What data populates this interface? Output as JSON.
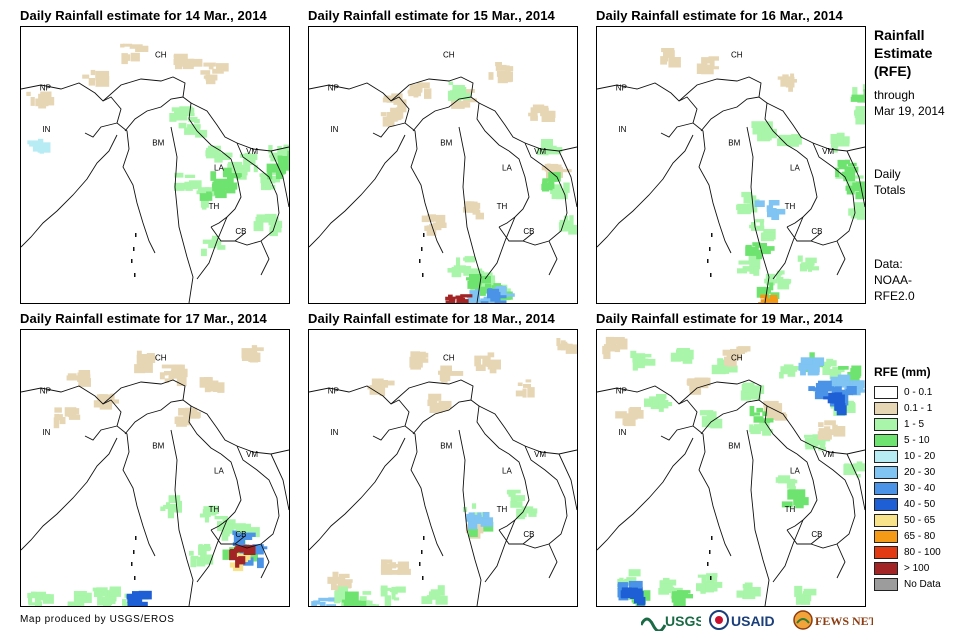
{
  "panels": [
    {
      "title": "Daily Rainfall estimate for 14 Mar., 2014",
      "rain": [
        {
          "cls": "1-5",
          "spots": [
            [
              0.58,
              0.3
            ],
            [
              0.62,
              0.35
            ],
            [
              0.72,
              0.45
            ],
            [
              0.8,
              0.5
            ],
            [
              0.85,
              0.48
            ],
            [
              0.95,
              0.45
            ],
            [
              0.92,
              0.55
            ],
            [
              0.6,
              0.55
            ],
            [
              0.66,
              0.6
            ],
            [
              0.7,
              0.78
            ],
            [
              0.9,
              0.7
            ]
          ]
        },
        {
          "cls": "5-10",
          "spots": [
            [
              0.7,
              0.58
            ],
            [
              0.74,
              0.54
            ],
            [
              0.76,
              0.52
            ],
            [
              0.95,
              0.5
            ],
            [
              0.98,
              0.47
            ]
          ]
        },
        {
          "cls": "0.1-1",
          "spots": [
            [
              0.4,
              0.08
            ],
            [
              0.6,
              0.12
            ],
            [
              0.05,
              0.25
            ],
            [
              0.7,
              0.15
            ],
            [
              0.25,
              0.18
            ]
          ]
        },
        {
          "cls": "10-20",
          "spots": [
            [
              0.05,
              0.4
            ]
          ]
        }
      ]
    },
    {
      "title": "Daily Rainfall estimate for 15 Mar., 2014",
      "rain": [
        {
          "cls": "0.1-1",
          "spots": [
            [
              0.3,
              0.25
            ],
            [
              0.4,
              0.22
            ],
            [
              0.55,
              0.25
            ],
            [
              0.85,
              0.3
            ],
            [
              0.6,
              0.65
            ],
            [
              0.45,
              0.7
            ],
            [
              0.3,
              0.3
            ],
            [
              0.7,
              0.15
            ],
            [
              0.9,
              0.5
            ]
          ]
        },
        {
          "cls": "1-5",
          "spots": [
            [
              0.55,
              0.22
            ],
            [
              0.88,
              0.42
            ],
            [
              0.92,
              0.58
            ],
            [
              0.95,
              0.7
            ],
            [
              0.55,
              0.85
            ],
            [
              0.65,
              0.9
            ],
            [
              0.7,
              0.95
            ]
          ]
        },
        {
          "cls": "5-10",
          "spots": [
            [
              0.6,
              0.92
            ],
            [
              0.68,
              0.95
            ],
            [
              0.9,
              0.55
            ]
          ]
        },
        {
          "cls": "20-30",
          "spots": [
            [
              0.62,
              0.97
            ],
            [
              0.7,
              0.96
            ]
          ]
        },
        {
          "cls": "30-40",
          "spots": [
            [
              0.66,
              0.97
            ]
          ]
        },
        {
          "cls": "gt100",
          "spots": [
            [
              0.54,
              0.99
            ]
          ]
        }
      ]
    },
    {
      "title": "Daily Rainfall estimate for 16 Mar., 2014",
      "rain": [
        {
          "cls": "1-5",
          "spots": [
            [
              0.6,
              0.36
            ],
            [
              0.7,
              0.4
            ],
            [
              0.9,
              0.4
            ],
            [
              0.98,
              0.3
            ],
            [
              0.92,
              0.55
            ],
            [
              0.95,
              0.65
            ],
            [
              0.55,
              0.62
            ],
            [
              0.6,
              0.72
            ],
            [
              0.55,
              0.85
            ],
            [
              0.65,
              0.9
            ],
            [
              0.78,
              0.85
            ],
            [
              0.98,
              0.2
            ]
          ]
        },
        {
          "cls": "5-10",
          "spots": [
            [
              0.92,
              0.5
            ],
            [
              0.96,
              0.58
            ],
            [
              0.58,
              0.8
            ],
            [
              0.62,
              0.95
            ],
            [
              0.98,
              0.25
            ]
          ]
        },
        {
          "cls": "20-30",
          "spots": [
            [
              0.62,
              0.64
            ]
          ]
        },
        {
          "cls": "0.1-1",
          "spots": [
            [
              0.7,
              0.18
            ],
            [
              0.4,
              0.12
            ],
            [
              0.25,
              0.1
            ]
          ]
        },
        {
          "cls": "65-80",
          "spots": [
            [
              0.63,
              0.99
            ]
          ]
        }
      ]
    },
    {
      "title": "Daily Rainfall estimate for 17 Mar., 2014",
      "rain": [
        {
          "cls": "0.1-1",
          "spots": [
            [
              0.45,
              0.1
            ],
            [
              0.55,
              0.15
            ],
            [
              0.7,
              0.18
            ],
            [
              0.3,
              0.25
            ],
            [
              0.2,
              0.15
            ],
            [
              0.85,
              0.08
            ],
            [
              0.15,
              0.3
            ],
            [
              0.6,
              0.3
            ]
          ]
        },
        {
          "cls": "1-5",
          "spots": [
            [
              0.7,
              0.65
            ],
            [
              0.75,
              0.7
            ],
            [
              0.82,
              0.72
            ],
            [
              0.65,
              0.8
            ],
            [
              0.3,
              0.95
            ],
            [
              0.4,
              0.97
            ],
            [
              0.2,
              0.97
            ],
            [
              0.05,
              0.97
            ],
            [
              0.55,
              0.62
            ]
          ]
        },
        {
          "cls": "5-10",
          "spots": [
            [
              0.78,
              0.78
            ],
            [
              0.82,
              0.8
            ]
          ]
        },
        {
          "cls": "30-40",
          "spots": [
            [
              0.82,
              0.75
            ],
            [
              0.85,
              0.8
            ]
          ]
        },
        {
          "cls": "50-65",
          "spots": [
            [
              0.8,
              0.82
            ]
          ]
        },
        {
          "cls": "gt100",
          "spots": [
            [
              0.81,
              0.8
            ]
          ]
        },
        {
          "cls": "40-50",
          "spots": [
            [
              0.42,
              0.96
            ]
          ]
        }
      ]
    },
    {
      "title": "Daily Rainfall estimate for 18 Mar., 2014",
      "rain": [
        {
          "cls": "0.1-1",
          "spots": [
            [
              0.4,
              0.1
            ],
            [
              0.5,
              0.15
            ],
            [
              0.65,
              0.1
            ],
            [
              0.25,
              0.2
            ],
            [
              0.8,
              0.2
            ],
            [
              0.45,
              0.25
            ],
            [
              0.1,
              0.9
            ],
            [
              0.3,
              0.85
            ],
            [
              0.6,
              0.7
            ],
            [
              0.95,
              0.05
            ]
          ]
        },
        {
          "cls": "1-5",
          "spots": [
            [
              0.6,
              0.65
            ],
            [
              0.75,
              0.6
            ],
            [
              0.8,
              0.65
            ],
            [
              0.1,
              0.95
            ],
            [
              0.3,
              0.95
            ],
            [
              0.2,
              0.97
            ],
            [
              0.45,
              0.95
            ]
          ]
        },
        {
          "cls": "5-10",
          "spots": [
            [
              0.62,
              0.7
            ],
            [
              0.15,
              0.97
            ]
          ]
        },
        {
          "cls": "20-30",
          "spots": [
            [
              0.62,
              0.68
            ],
            [
              0.04,
              0.99
            ]
          ]
        }
      ]
    },
    {
      "title": "Daily Rainfall estimate for 19 Mar., 2014",
      "rain": [
        {
          "cls": "1-5",
          "spots": [
            [
              0.15,
              0.1
            ],
            [
              0.3,
              0.08
            ],
            [
              0.45,
              0.12
            ],
            [
              0.55,
              0.2
            ],
            [
              0.7,
              0.15
            ],
            [
              0.85,
              0.12
            ],
            [
              0.9,
              0.25
            ],
            [
              0.4,
              0.3
            ],
            [
              0.2,
              0.25
            ],
            [
              0.6,
              0.35
            ],
            [
              0.8,
              0.4
            ],
            [
              0.7,
              0.55
            ],
            [
              0.95,
              0.5
            ],
            [
              0.1,
              0.88
            ],
            [
              0.25,
              0.92
            ],
            [
              0.4,
              0.9
            ],
            [
              0.55,
              0.93
            ],
            [
              0.75,
              0.95
            ]
          ]
        },
        {
          "cls": "0.1-1",
          "spots": [
            [
              0.05,
              0.05
            ],
            [
              0.1,
              0.3
            ],
            [
              0.35,
              0.18
            ],
            [
              0.5,
              0.08
            ],
            [
              0.65,
              0.28
            ],
            [
              0.85,
              0.35
            ]
          ]
        },
        {
          "cls": "5-10",
          "spots": [
            [
              0.8,
              0.1
            ],
            [
              0.92,
              0.15
            ],
            [
              0.72,
              0.6
            ],
            [
              0.15,
              0.95
            ],
            [
              0.3,
              0.95
            ],
            [
              0.6,
              0.3
            ]
          ]
        },
        {
          "cls": "20-30",
          "spots": [
            [
              0.78,
              0.12
            ],
            [
              0.88,
              0.18
            ],
            [
              0.95,
              0.2
            ]
          ]
        },
        {
          "cls": "30-40",
          "spots": [
            [
              0.82,
              0.2
            ],
            [
              0.9,
              0.22
            ],
            [
              0.1,
              0.93
            ]
          ]
        },
        {
          "cls": "40-50",
          "spots": [
            [
              0.87,
              0.25
            ],
            [
              0.12,
              0.95
            ]
          ]
        }
      ]
    }
  ],
  "labels": [
    "CH",
    "NP",
    "IN",
    "BM",
    "LA",
    "VM",
    "TH",
    "CB"
  ],
  "side": {
    "title_lines": [
      "Rainfall",
      "Estimate",
      "(RFE)"
    ],
    "through_lines": [
      "through",
      "Mar 19, 2014"
    ],
    "daily_lines": [
      "Daily",
      "Totals"
    ],
    "data_lines": [
      "Data:",
      "NOAA-",
      "RFE2.0"
    ]
  },
  "legend": {
    "title": "RFE (mm)",
    "items": [
      {
        "label": "0 - 0.1",
        "color": "#ffffff"
      },
      {
        "label": "0.1 - 1",
        "color": "#e7d6b4"
      },
      {
        "label": "1 - 5",
        "color": "#a9f5a9"
      },
      {
        "label": "5 - 10",
        "color": "#6fe36f"
      },
      {
        "label": "10 - 20",
        "color": "#b8ecf5"
      },
      {
        "label": "20 - 30",
        "color": "#7fc4f3"
      },
      {
        "label": "30 - 40",
        "color": "#4a93e6"
      },
      {
        "label": "40 - 50",
        "color": "#1f5fd6"
      },
      {
        "label": "50 - 65",
        "color": "#f8e28a"
      },
      {
        "label": "65 - 80",
        "color": "#f59a16"
      },
      {
        "label": "80 - 100",
        "color": "#e23a12"
      },
      {
        "label": "> 100",
        "color": "#a32424"
      },
      {
        "label": "No Data",
        "color": "#9c9c9c"
      }
    ]
  },
  "credit": "Map produced by USGS/EROS",
  "logos": {
    "usgs": "USGS",
    "usaid": "USAID",
    "fewsnet": "FEWS NET"
  }
}
